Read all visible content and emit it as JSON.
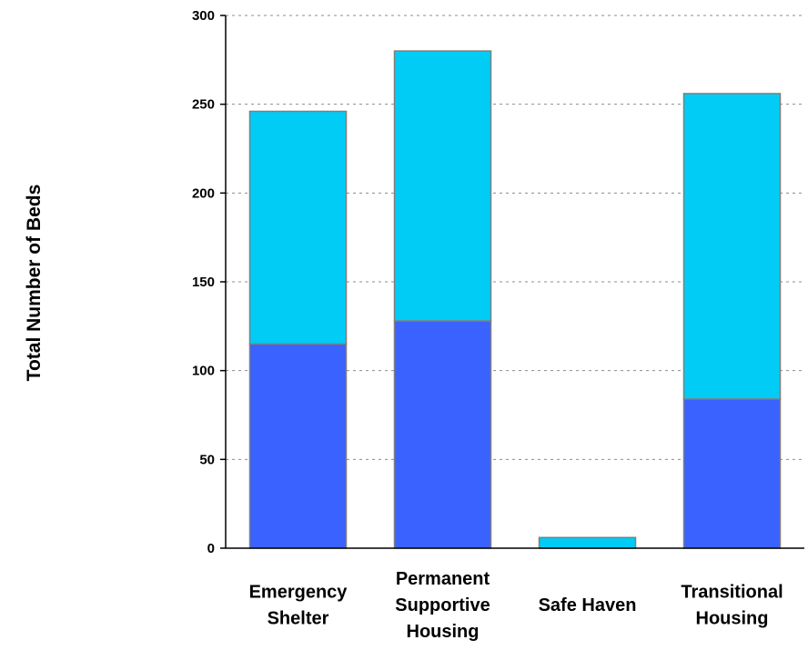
{
  "chart_data": {
    "type": "bar",
    "stacked": true,
    "title": "",
    "xlabel": "",
    "ylabel": "Total Number of Beds",
    "ylim": [
      0,
      300
    ],
    "yticks": [
      0,
      50,
      100,
      150,
      200,
      250,
      300
    ],
    "grid": true,
    "legend": "none",
    "categories": [
      [
        "Emergency",
        "Shelter"
      ],
      [
        "Permanent",
        "Supportive",
        "Housing"
      ],
      [
        "Safe Haven"
      ],
      [
        "Transitional",
        "Housing"
      ]
    ],
    "series": [
      {
        "color": "#3a62ff",
        "values": [
          115,
          128,
          0,
          84
        ]
      },
      {
        "color": "#00ccf5",
        "values": [
          131,
          152,
          6,
          172
        ]
      }
    ]
  }
}
